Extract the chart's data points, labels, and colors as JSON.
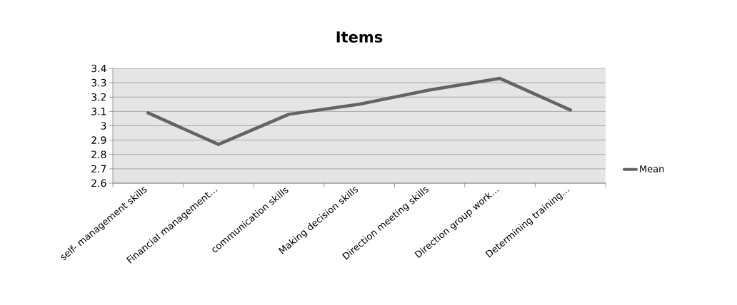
{
  "chart_data": {
    "type": "line",
    "title": "Items",
    "categories": [
      "self- management skills",
      "Financial management…",
      "communication skills",
      "Making decision skills",
      "Direction meeting skills",
      "Direction group work…",
      "Determining training…"
    ],
    "series": [
      {
        "name": "Mean",
        "color": "#646464",
        "values": [
          3.09,
          2.87,
          3.08,
          3.15,
          3.25,
          3.33,
          3.11
        ]
      }
    ],
    "ylim": [
      2.6,
      3.4
    ],
    "yticks": [
      2.6,
      2.7,
      2.8,
      2.9,
      3,
      3.1,
      3.2,
      3.3,
      3.4
    ],
    "grid": "y",
    "legend": "right",
    "marker": "none",
    "line_style": "solid"
  }
}
